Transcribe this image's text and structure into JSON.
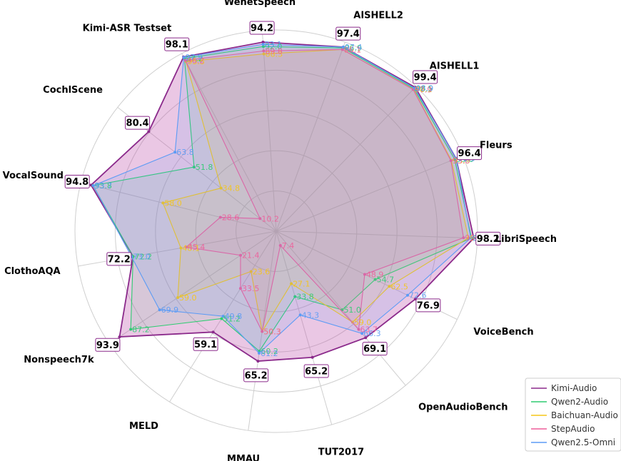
{
  "chart_data": {
    "type": "radar",
    "axes": [
      "LibriSpeech",
      "Fleurs",
      "AISHELL1",
      "AISHELL2",
      "WenetSpeech",
      "Kimi-ASR Testset",
      "CochlScene",
      "VocalSound",
      "ClothoAQA",
      "Nonspeech7k",
      "MELD",
      "MMAU",
      "TUT2017",
      "OpenAudioBench",
      "VoiceBench"
    ],
    "series": [
      {
        "name": "Kimi-Audio",
        "color": "#8b2a8b",
        "fill": "rgba(190,80,170,0.32)",
        "values": [
          98.2,
          96.4,
          99.4,
          97.4,
          94.2,
          98.1,
          80.4,
          94.8,
          72.2,
          93.9,
          59.1,
          65.2,
          65.2,
          69.1,
          76.9
        ]
      },
      {
        "name": "Qwen2-Audio",
        "color": "#2ecc71",
        "fill": "rgba(46,204,113,0.10)",
        "values": [
          97.1,
          95.6,
          98.5,
          96.9,
          92.0,
          97.2,
          51.8,
          93.8,
          72.2,
          87.2,
          51.2,
          60.2,
          33.8,
          51.0,
          54.7
        ]
      },
      {
        "name": "Baichuan-Audio",
        "color": "#f5c518",
        "fill": "rgba(245,197,24,0.10)",
        "values": [
          95.5,
          93.9,
          98.1,
          96.1,
          88.3,
          95.5,
          34.8,
          58.0,
          48.1,
          59.0,
          23.6,
          50.3,
          27.1,
          59.0,
          62.5
        ]
      },
      {
        "name": "StepAudio",
        "color": "#ee5f9a",
        "fill": "rgba(238,95,154,0.10)",
        "values": [
          93.1,
          93.6,
          97.9,
          96.1,
          89.8,
          96.2,
          10.2,
          28.6,
          45.4,
          21.4,
          33.5,
          50.3,
          7.4,
          63.7,
          48.9
        ]
      },
      {
        "name": "Qwen2.5-Omni",
        "color": "#5b9bf5",
        "fill": "rgba(91,155,245,0.14)",
        "values": [
          96.7,
          96.5,
          98.9,
          97.4,
          93.1,
          97.9,
          63.8,
          93.7,
          73.0,
          69.9,
          49.8,
          61.2,
          43.3,
          66.3,
          72.6
        ]
      }
    ],
    "value_labels": {
      "Qwen2-Audio": [
        "97.1",
        "95.6",
        "98.5",
        "96.9",
        "92.0",
        "97.2",
        "51.8",
        "93.8",
        "72.2",
        "87.2",
        "51.2",
        "60.2",
        "33.8",
        "51.0",
        "54.7"
      ],
      "Baichuan-Audio": [
        "95.5",
        "93.9",
        "98.1",
        "96.1",
        "88.3",
        "95.5",
        "34.8",
        "58.0",
        "48.1",
        "59.0",
        "23.6",
        "50.3",
        "27.1",
        "59.0",
        "62.5"
      ],
      "StepAudio": [
        "93.1",
        "93.6",
        "97.9",
        "96.1",
        "89.8",
        "96.2",
        "10.2",
        "28.6",
        "45.4",
        "21.4",
        "33.5",
        "50.3",
        "7.4",
        "63.7",
        "48.9"
      ],
      "Qwen2.5-Omni": [
        "96.7",
        "96.5",
        "98.9",
        "97.4",
        "93.1",
        "97.9",
        "63.8",
        "93.7",
        "73.0",
        "69.9",
        "49.8",
        "61.2",
        "43.3",
        "66.3",
        "72.6"
      ]
    },
    "kimi_labels": [
      "98.2",
      "96.4",
      "99.4",
      "97.4",
      "94.2",
      "98.1",
      "80.4",
      "94.8",
      "72.2",
      "93.9",
      "59.1",
      "65.2",
      "65.2",
      "69.1",
      "76.9"
    ],
    "legend_position": "bottom-right",
    "grid": true
  }
}
